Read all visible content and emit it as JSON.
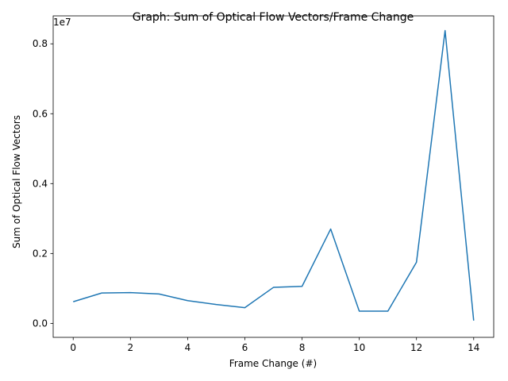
{
  "chart_data": {
    "type": "line",
    "title": "Graph: Sum of Optical Flow Vectors/Frame Change",
    "xlabel": "Frame Change (#)",
    "ylabel": "Sum of Optical Flow Vectors",
    "y_offset_label": "1e7",
    "xlim": [
      -0.7,
      14.7
    ],
    "ylim": [
      -0.04,
      0.88
    ],
    "x_ticks": [
      0,
      2,
      4,
      6,
      8,
      10,
      12,
      14
    ],
    "x_tick_labels": [
      "0",
      "2",
      "4",
      "6",
      "8",
      "10",
      "12",
      "14"
    ],
    "y_ticks": [
      0.0,
      0.2,
      0.4,
      0.6,
      0.8
    ],
    "y_tick_labels": [
      "0.0",
      "0.2",
      "0.4",
      "0.6",
      "0.8"
    ],
    "grid": false,
    "series": [
      {
        "color": "#1f77b4",
        "x": [
          0,
          1,
          2,
          3,
          4,
          5,
          6,
          7,
          8,
          9,
          10,
          11,
          12,
          13,
          14
        ],
        "values": [
          0.062,
          0.087,
          0.088,
          0.084,
          0.065,
          0.054,
          0.045,
          0.103,
          0.106,
          0.27,
          0.035,
          0.035,
          0.175,
          0.838,
          0.008
        ]
      }
    ]
  }
}
